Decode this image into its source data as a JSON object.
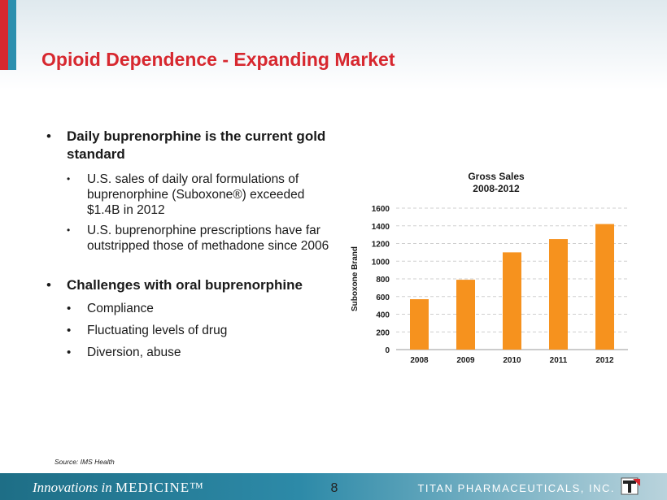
{
  "slide": {
    "title": "Opioid Dependence - Expanding Market",
    "page_number": "8",
    "source": "Source: IMS Health"
  },
  "bullets": {
    "main1": "Daily buprenorphine is the current gold standard",
    "sub1": [
      "U.S. sales of daily oral formulations of buprenorphine (Suboxone®) exceeded $1.4B in 2012",
      "U.S. buprenorphine prescriptions have far outstripped those of methadone since 2006"
    ],
    "main2": "Challenges with oral buprenorphine",
    "sub2": [
      "Compliance",
      "Fluctuating levels of drug",
      "Diversion, abuse"
    ]
  },
  "footer": {
    "tagline_italic": "Innovations in",
    "tagline_caps": "MEDICINE™",
    "company": "TITAN PHARMACEUTICALS, INC."
  },
  "colors": {
    "accent": "#d7282f",
    "teal": "#2c8fae",
    "bar": "#f6921e"
  },
  "chart_data": {
    "type": "bar",
    "title": "Gross Sales",
    "subtitle": "2008-2012",
    "categories": [
      "2008",
      "2009",
      "2010",
      "2011",
      "2012"
    ],
    "values": [
      570,
      790,
      1100,
      1250,
      1420
    ],
    "xlabel": "",
    "ylabel": "Suboxone Brand",
    "ylim": [
      0,
      1600
    ],
    "yticks": [
      "0",
      "200",
      "400",
      "600",
      "800",
      "1000",
      "1200",
      "1400",
      "1600"
    ],
    "grid": true
  }
}
